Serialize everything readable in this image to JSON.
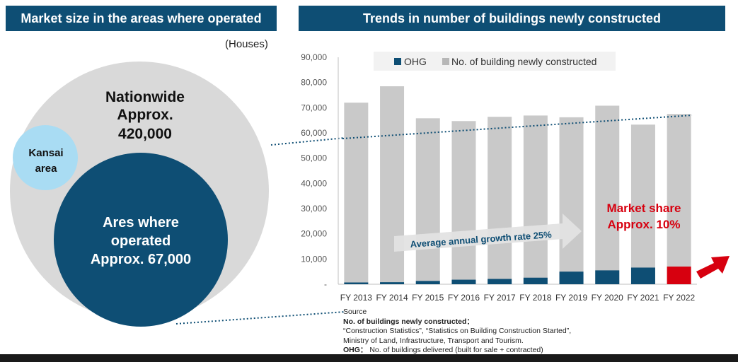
{
  "left_panel": {
    "title": "Market size in the areas where operated",
    "units": "(Houses)",
    "nationwide": [
      "Nationwide",
      "Approx.",
      "420,000"
    ],
    "kansai": [
      "Kansai",
      "area"
    ],
    "operated": [
      "Ares where",
      "operated",
      "Approx. 67,000"
    ]
  },
  "right_panel": {
    "title": "Trends in number of buildings newly constructed",
    "growth_label": "Average annual growth rate 25%",
    "share_label": [
      "Market share",
      "Approx. 10%"
    ]
  },
  "colors": {
    "banner": "#0e4e74",
    "ohg": "#0e4e74",
    "total": "#c9c9c9",
    "highlight": "#d7000f",
    "kansai": "#a9dcf3"
  },
  "chart_data": {
    "type": "bar",
    "categories": [
      "FY 2013",
      "FY 2014",
      "FY 2015",
      "FY 2016",
      "FY 2017",
      "FY 2018",
      "FY 2019",
      "FY 2020",
      "FY 2021",
      "FY 2022"
    ],
    "series": [
      {
        "name": "OHG",
        "values": [
          700,
          800,
          1300,
          1800,
          2100,
          2600,
          5000,
          5500,
          6600,
          7000
        ]
      },
      {
        "name": "No. of building newly constructed",
        "values": [
          72000,
          78500,
          65800,
          64700,
          66400,
          66900,
          66200,
          70800,
          63300,
          67500
        ]
      }
    ],
    "yticks": [
      "-",
      "10,000",
      "20,000",
      "30,000",
      "40,000",
      "50,000",
      "60,000",
      "70,000",
      "80,000",
      "90,000"
    ],
    "ylim": [
      0,
      90000
    ],
    "legend_position": "top"
  },
  "source": {
    "heading": "Source",
    "line1_bold": "No. of buildings newly constructed：",
    "line2": "“Construction Statistics”, “Statistics on Building Construction Started”,",
    "line3": "Ministry of Land, Infrastructure, Transport and Tourism.",
    "line4_bold": "OHG：",
    "line4": "No. of buildings delivered (built for sale + contracted)"
  }
}
